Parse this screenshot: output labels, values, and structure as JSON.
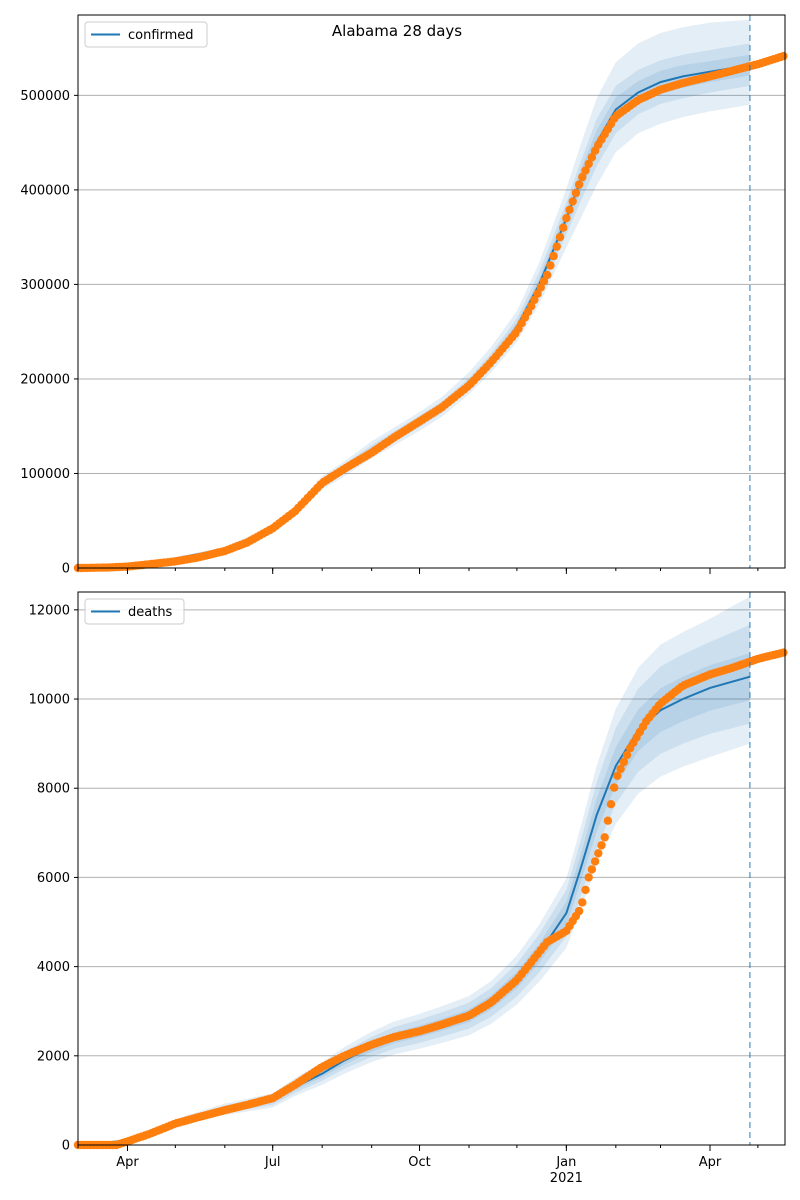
{
  "title": "Alabama 28 days",
  "colors": {
    "model": "#1f77b4",
    "observed": "#ff7f0e",
    "band": "#1f77b4",
    "grid": "#b0b0b0",
    "forecast_line": "#1f77b4"
  },
  "chart_data": [
    {
      "type": "line",
      "panel": "confirmed",
      "legend": {
        "label": "confirmed",
        "placement": "upper-left"
      },
      "xlim": [
        "2020-03-01",
        "2021-05-18"
      ],
      "ylim": [
        0,
        585000
      ],
      "grid": "y",
      "y_ticks": [
        0,
        100000,
        200000,
        300000,
        400000,
        500000
      ],
      "forecast_start": "2021-04-26",
      "model_series": {
        "name": "confirmed",
        "x": [
          "2020-03-01",
          "2020-04-01",
          "2020-05-01",
          "2020-06-01",
          "2020-07-01",
          "2020-07-15",
          "2020-08-01",
          "2020-08-15",
          "2020-09-01",
          "2020-10-01",
          "2020-10-15",
          "2020-11-01",
          "2020-11-15",
          "2020-12-01",
          "2020-12-15",
          "2021-01-01",
          "2021-01-10",
          "2021-01-20",
          "2021-02-01",
          "2021-02-15",
          "2021-03-01",
          "2021-03-15",
          "2021-04-01",
          "2021-04-26"
        ],
        "y": [
          0,
          3000,
          10000,
          20000,
          40000,
          60000,
          90000,
          105000,
          125000,
          155000,
          170000,
          195000,
          220000,
          255000,
          300000,
          370000,
          410000,
          450000,
          485000,
          503000,
          514000,
          520000,
          525000,
          532000
        ]
      },
      "bands": [
        {
          "level": "outer",
          "lower": [
            0,
            2500,
            8500,
            17500,
            36000,
            55000,
            83000,
            97000,
            116000,
            145000,
            160000,
            184000,
            207000,
            239000,
            279000,
            339000,
            370000,
            405000,
            440000,
            460000,
            470000,
            477000,
            483000,
            490000
          ],
          "upper": [
            0,
            3500,
            11500,
            22500,
            44000,
            65000,
            97000,
            113000,
            134000,
            165000,
            181000,
            207000,
            234000,
            272000,
            323000,
            401000,
            448000,
            497000,
            535000,
            555000,
            566000,
            572000,
            577000,
            580000
          ]
        },
        {
          "level": "middle",
          "lower": [
            0,
            2700,
            9000,
            18500,
            37500,
            57000,
            86000,
            100000,
            120000,
            149000,
            164000,
            189000,
            213000,
            246000,
            288000,
            353000,
            388000,
            425000,
            460000,
            480000,
            491000,
            497000,
            503000,
            510000
          ],
          "upper": [
            0,
            3300,
            11000,
            21500,
            42500,
            63000,
            94000,
            110000,
            130000,
            161000,
            176000,
            201000,
            227000,
            264000,
            313000,
            387000,
            430000,
            475000,
            510000,
            527000,
            537000,
            543000,
            548000,
            555000
          ]
        },
        {
          "level": "inner",
          "lower": [
            0,
            2850,
            9500,
            19200,
            38800,
            58500,
            88000,
            102500,
            122500,
            152000,
            167000,
            192000,
            216500,
            250500,
            294000,
            361000,
            399000,
            437000,
            472000,
            491000,
            502000,
            508000,
            514000,
            521000
          ],
          "upper": [
            0,
            3150,
            10500,
            20800,
            41200,
            61500,
            92000,
            107500,
            127500,
            158000,
            173000,
            198000,
            223500,
            259500,
            306000,
            379000,
            421000,
            463000,
            498000,
            515000,
            526000,
            532000,
            536000,
            543000
          ]
        }
      ],
      "observed_series": {
        "name": "observed",
        "x": [
          "2020-03-01",
          "2020-03-20",
          "2020-04-01",
          "2020-04-15",
          "2020-05-01",
          "2020-05-15",
          "2020-06-01",
          "2020-06-15",
          "2020-07-01",
          "2020-07-15",
          "2020-08-01",
          "2020-08-15",
          "2020-09-01",
          "2020-09-15",
          "2020-10-01",
          "2020-10-15",
          "2020-11-01",
          "2020-11-15",
          "2020-12-01",
          "2020-12-10",
          "2020-12-20",
          "2021-01-01",
          "2021-01-10",
          "2021-01-20",
          "2021-02-01",
          "2021-02-15",
          "2021-03-01",
          "2021-03-15",
          "2021-04-01",
          "2021-04-15",
          "2021-05-01",
          "2021-05-18"
        ],
        "y": [
          0,
          500,
          1500,
          4000,
          7000,
          11000,
          18000,
          27000,
          42000,
          60000,
          90000,
          105000,
          122000,
          138000,
          155000,
          170000,
          193000,
          218000,
          250000,
          277000,
          310000,
          370000,
          410000,
          445000,
          478000,
          495000,
          506000,
          513000,
          520000,
          526000,
          533000,
          542000
        ]
      }
    },
    {
      "type": "line",
      "panel": "deaths",
      "legend": {
        "label": "deaths",
        "placement": "upper-left"
      },
      "xlim": [
        "2020-03-01",
        "2021-05-18"
      ],
      "ylim": [
        0,
        12400
      ],
      "grid": "y",
      "y_ticks": [
        0,
        2000,
        4000,
        6000,
        8000,
        10000,
        12000
      ],
      "x_ticks": [
        {
          "date": "2020-04-01",
          "label": "Apr"
        },
        {
          "date": "2020-07-01",
          "label": "Jul"
        },
        {
          "date": "2020-10-01",
          "label": "Oct"
        },
        {
          "date": "2021-01-01",
          "label": "Jan",
          "sub": "2021"
        },
        {
          "date": "2021-04-01",
          "label": "Apr"
        }
      ],
      "forecast_start": "2021-04-26",
      "model_series": {
        "name": "deaths",
        "x": [
          "2020-03-01",
          "2020-04-01",
          "2020-05-01",
          "2020-06-01",
          "2020-07-01",
          "2020-07-15",
          "2020-08-01",
          "2020-08-15",
          "2020-09-01",
          "2020-09-15",
          "2020-10-01",
          "2020-10-15",
          "2020-11-01",
          "2020-11-15",
          "2020-12-01",
          "2020-12-15",
          "2021-01-01",
          "2021-01-10",
          "2021-01-20",
          "2021-02-01",
          "2021-02-15",
          "2021-03-01",
          "2021-03-15",
          "2021-04-01",
          "2021-04-26"
        ],
        "y": [
          0,
          100,
          500,
          800,
          1000,
          1300,
          1600,
          1900,
          2200,
          2400,
          2550,
          2700,
          2900,
          3200,
          3700,
          4300,
          5200,
          6200,
          7400,
          8500,
          9300,
          9750,
          10000,
          10250,
          10500
        ]
      },
      "bands": [
        {
          "level": "outer",
          "lower": [
            0,
            85,
            420,
            670,
            840,
            1100,
            1350,
            1600,
            1860,
            2030,
            2160,
            2290,
            2460,
            2720,
            3150,
            3660,
            4420,
            5270,
            6290,
            7200,
            7880,
            8260,
            8480,
            8700,
            9000
          ],
          "upper": [
            0,
            115,
            580,
            930,
            1160,
            1500,
            1850,
            2200,
            2540,
            2770,
            2940,
            3110,
            3340,
            3680,
            4250,
            4940,
            5980,
            7130,
            8510,
            9780,
            10700,
            11220,
            11500,
            11800,
            12300
          ]
        },
        {
          "level": "middle",
          "lower": [
            0,
            90,
            450,
            720,
            900,
            1170,
            1440,
            1710,
            1980,
            2160,
            2290,
            2430,
            2610,
            2880,
            3330,
            3870,
            4680,
            5580,
            6660,
            7650,
            8370,
            8770,
            9000,
            9220,
            9450
          ]
        },
        {
          "level": "inner",
          "lower": [
            0,
            95,
            475,
            760,
            950,
            1235,
            1520,
            1805,
            2090,
            2280,
            2420,
            2565,
            2755,
            3040,
            3515,
            4085,
            4940,
            5890,
            7030,
            8075,
            8835,
            9260,
            9500,
            9740,
            9970
          ],
          "upper": [
            0,
            105,
            525,
            840,
            1050,
            1365,
            1680,
            1995,
            2310,
            2520,
            2680,
            2835,
            3045,
            3360,
            3885,
            4515,
            5460,
            6510,
            7770,
            8925,
            9765,
            10240,
            10500,
            10760,
            11030
          ]
        }
      ],
      "observed_series": {
        "name": "observed",
        "x": [
          "2020-03-01",
          "2020-03-25",
          "2020-04-01",
          "2020-04-15",
          "2020-05-01",
          "2020-05-15",
          "2020-06-01",
          "2020-06-15",
          "2020-07-01",
          "2020-07-15",
          "2020-08-01",
          "2020-08-15",
          "2020-09-01",
          "2020-09-15",
          "2020-10-01",
          "2020-10-15",
          "2020-11-01",
          "2020-11-15",
          "2020-12-01",
          "2020-12-10",
          "2020-12-20",
          "2021-01-01",
          "2021-01-10",
          "2021-01-15",
          "2021-01-25",
          "2021-02-01",
          "2021-02-10",
          "2021-02-20",
          "2021-03-01",
          "2021-03-15",
          "2021-04-01",
          "2021-04-15",
          "2021-05-01",
          "2021-05-18"
        ],
        "y": [
          0,
          0,
          80,
          250,
          480,
          620,
          780,
          900,
          1050,
          1350,
          1750,
          2000,
          2250,
          2420,
          2550,
          2700,
          2900,
          3200,
          3700,
          4100,
          4550,
          4800,
          5300,
          6000,
          6900,
          8200,
          8900,
          9500,
          9900,
          10300,
          10550,
          10700,
          10900,
          11050
        ]
      }
    }
  ]
}
